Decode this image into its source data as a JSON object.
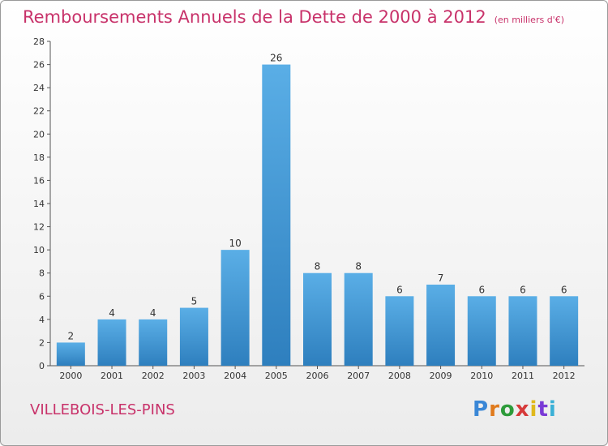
{
  "header": {
    "title": "Remboursements Annuels de la Dette de 2000 à 2012",
    "unit": "(en milliers d'€)"
  },
  "footer": {
    "town": "VILLEBOIS-LES-PINS",
    "logo": "Proxiti"
  },
  "colors": {
    "title": "#c8326a",
    "bar_light": "#5aaee6",
    "bar_dark": "#2e7fbe",
    "logo_letters": [
      "#3a87d6",
      "#e07a1c",
      "#2d9b3a",
      "#d63a3a",
      "#e0b81c",
      "#7a3ad6",
      "#3ab0d6"
    ]
  },
  "chart_data": {
    "type": "bar",
    "title": "Remboursements Annuels de la Dette de 2000 à 2012",
    "unit": "(en milliers d'€)",
    "categories": [
      "2000",
      "2001",
      "2002",
      "2003",
      "2004",
      "2005",
      "2006",
      "2007",
      "2008",
      "2009",
      "2010",
      "2011",
      "2012"
    ],
    "values": [
      2,
      4,
      4,
      5,
      10,
      26,
      8,
      8,
      6,
      7,
      6,
      6,
      6
    ],
    "ylim": [
      0,
      28
    ],
    "yticks": [
      0,
      2,
      4,
      6,
      8,
      10,
      12,
      14,
      16,
      18,
      20,
      22,
      24,
      26,
      28
    ],
    "grid": false,
    "legend": "none"
  }
}
